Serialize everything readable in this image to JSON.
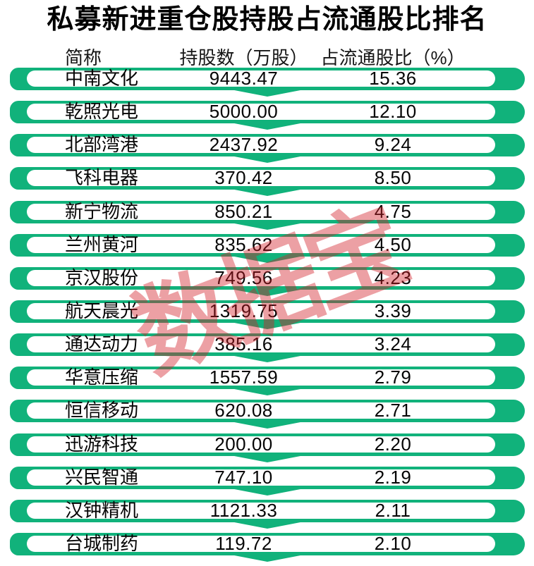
{
  "title": "私募新进重仓股持股占流通股比排名",
  "watermark": "数据宝",
  "colors": {
    "green": "#11b27b",
    "watermark_red": "#d41e28",
    "text": "#000000"
  },
  "table": {
    "headers": {
      "name": "简称",
      "shares": "持股数（万股）",
      "ratio": "占流通股比（%）"
    },
    "rows": [
      {
        "name": "中南文化",
        "shares": "9443.47",
        "ratio": "15.36"
      },
      {
        "name": "乾照光电",
        "shares": "5000.00",
        "ratio": "12.10"
      },
      {
        "name": "北部湾港",
        "shares": "2437.92",
        "ratio": "9.24"
      },
      {
        "name": "飞科电器",
        "shares": "370.42",
        "ratio": "8.50"
      },
      {
        "name": "新宁物流",
        "shares": "850.21",
        "ratio": "4.75"
      },
      {
        "name": "兰州黄河",
        "shares": "835.62",
        "ratio": "4.50"
      },
      {
        "name": "京汉股份",
        "shares": "749.56",
        "ratio": "4.23"
      },
      {
        "name": "航天晨光",
        "shares": "1319.75",
        "ratio": "3.39"
      },
      {
        "name": "通达动力",
        "shares": "385.16",
        "ratio": "3.24"
      },
      {
        "name": "华意压缩",
        "shares": "1557.59",
        "ratio": "2.79"
      },
      {
        "name": "恒信移动",
        "shares": "620.08",
        "ratio": "2.71"
      },
      {
        "name": "迅游科技",
        "shares": "200.00",
        "ratio": "2.20"
      },
      {
        "name": "兴民智通",
        "shares": "747.10",
        "ratio": "2.19"
      },
      {
        "name": "汉钟精机",
        "shares": "1121.33",
        "ratio": "2.11"
      },
      {
        "name": "台城制药",
        "shares": "119.72",
        "ratio": "2.10"
      }
    ]
  },
  "chart_data": {
    "type": "table",
    "title": "私募新进重仓股持股占流通股比排名",
    "columns": [
      "简称",
      "持股数（万股）",
      "占流通股比（%）"
    ],
    "categories": [
      "中南文化",
      "乾照光电",
      "北部湾港",
      "飞科电器",
      "新宁物流",
      "兰州黄河",
      "京汉股份",
      "航天晨光",
      "通达动力",
      "华意压缩",
      "恒信移动",
      "迅游科技",
      "兴民智通",
      "汉钟精机",
      "台城制药"
    ],
    "series": [
      {
        "name": "持股数（万股）",
        "values": [
          9443.47,
          5000.0,
          2437.92,
          370.42,
          850.21,
          835.62,
          749.56,
          1319.75,
          385.16,
          1557.59,
          620.08,
          200.0,
          747.1,
          1121.33,
          119.72
        ]
      },
      {
        "name": "占流通股比（%）",
        "values": [
          15.36,
          12.1,
          9.24,
          8.5,
          4.75,
          4.5,
          4.23,
          3.39,
          3.24,
          2.79,
          2.71,
          2.2,
          2.19,
          2.11,
          2.1
        ]
      }
    ],
    "legend_position": "none",
    "grid": false
  }
}
